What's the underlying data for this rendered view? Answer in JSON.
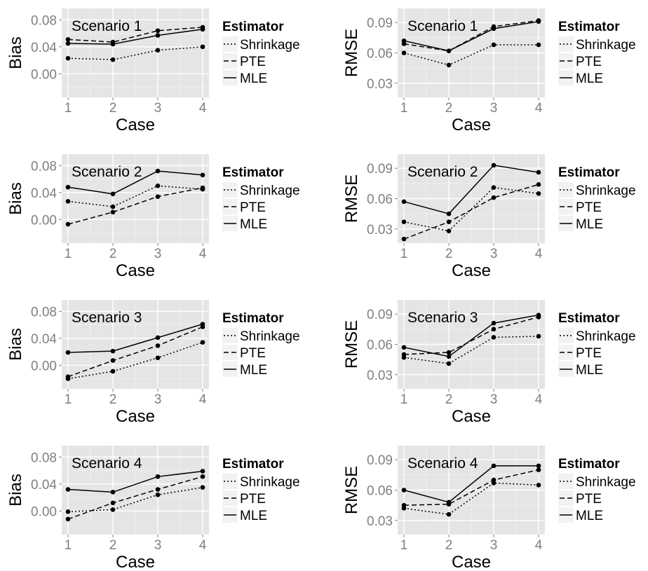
{
  "chart_data": [
    {
      "type": "line",
      "annotation": "Scenario  1",
      "xlabel": "Case",
      "ylabel": "Bias",
      "x": [
        1,
        2,
        3,
        4
      ],
      "yticks": [
        0.0,
        0.04,
        0.08
      ],
      "ytick_labels": [
        "0.00",
        "0.04",
        "0.08"
      ],
      "ylim": [
        -0.035,
        0.097
      ],
      "legend_title": "Estimator",
      "series": [
        {
          "name": "Shrinkage",
          "linestyle": "dotted",
          "values": [
            0.023,
            0.021,
            0.035,
            0.04
          ]
        },
        {
          "name": "PTE",
          "linestyle": "dashed",
          "values": [
            0.051,
            0.047,
            0.064,
            0.069
          ]
        },
        {
          "name": "MLE",
          "linestyle": "solid",
          "values": [
            0.045,
            0.044,
            0.057,
            0.066
          ]
        }
      ]
    },
    {
      "type": "line",
      "annotation": "Scenario  1",
      "xlabel": "Case",
      "ylabel": "RMSE",
      "x": [
        1,
        2,
        3,
        4
      ],
      "yticks": [
        0.03,
        0.06,
        0.09
      ],
      "ytick_labels": [
        "0.03",
        "0.06",
        "0.09"
      ],
      "ylim": [
        0.016,
        0.104
      ],
      "legend_title": "Estimator",
      "series": [
        {
          "name": "Shrinkage",
          "linestyle": "dotted",
          "values": [
            0.06,
            0.048,
            0.068,
            0.068
          ]
        },
        {
          "name": "PTE",
          "linestyle": "dashed",
          "values": [
            0.069,
            0.062,
            0.086,
            0.092
          ]
        },
        {
          "name": "MLE",
          "linestyle": "solid",
          "values": [
            0.072,
            0.062,
            0.084,
            0.091
          ]
        }
      ]
    },
    {
      "type": "line",
      "annotation": "Scenario  2",
      "xlabel": "Case",
      "ylabel": "Bias",
      "x": [
        1,
        2,
        3,
        4
      ],
      "yticks": [
        0.0,
        0.04,
        0.08
      ],
      "ytick_labels": [
        "0.00",
        "0.04",
        "0.08"
      ],
      "ylim": [
        -0.035,
        0.097
      ],
      "legend_title": "Estimator",
      "series": [
        {
          "name": "Shrinkage",
          "linestyle": "dotted",
          "values": [
            0.027,
            0.019,
            0.05,
            0.045
          ]
        },
        {
          "name": "PTE",
          "linestyle": "dashed",
          "values": [
            -0.007,
            0.011,
            0.034,
            0.047
          ]
        },
        {
          "name": "MLE",
          "linestyle": "solid",
          "values": [
            0.048,
            0.038,
            0.072,
            0.066
          ]
        }
      ]
    },
    {
      "type": "line",
      "annotation": "Scenario  2",
      "xlabel": "Case",
      "ylabel": "RMSE",
      "x": [
        1,
        2,
        3,
        4
      ],
      "yticks": [
        0.03,
        0.06,
        0.09
      ],
      "ytick_labels": [
        "0.03",
        "0.06",
        "0.09"
      ],
      "ylim": [
        0.016,
        0.104
      ],
      "legend_title": "Estimator",
      "series": [
        {
          "name": "Shrinkage",
          "linestyle": "dotted",
          "values": [
            0.037,
            0.028,
            0.071,
            0.065
          ]
        },
        {
          "name": "PTE",
          "linestyle": "dashed",
          "values": [
            0.02,
            0.037,
            0.061,
            0.074
          ]
        },
        {
          "name": "MLE",
          "linestyle": "solid",
          "values": [
            0.057,
            0.045,
            0.093,
            0.086
          ]
        }
      ]
    },
    {
      "type": "line",
      "annotation": "Scenario  3",
      "xlabel": "Case",
      "ylabel": "Bias",
      "x": [
        1,
        2,
        3,
        4
      ],
      "yticks": [
        0.0,
        0.04,
        0.08
      ],
      "ytick_labels": [
        "0.00",
        "0.04",
        "0.08"
      ],
      "ylim": [
        -0.035,
        0.097
      ],
      "legend_title": "Estimator",
      "series": [
        {
          "name": "Shrinkage",
          "linestyle": "dotted",
          "values": [
            -0.02,
            -0.009,
            0.011,
            0.034
          ]
        },
        {
          "name": "PTE",
          "linestyle": "dashed",
          "values": [
            -0.017,
            0.007,
            0.029,
            0.057
          ]
        },
        {
          "name": "MLE",
          "linestyle": "solid",
          "values": [
            0.019,
            0.021,
            0.041,
            0.061
          ]
        }
      ]
    },
    {
      "type": "line",
      "annotation": "Scenario  3",
      "xlabel": "Case",
      "ylabel": "RMSE",
      "x": [
        1,
        2,
        3,
        4
      ],
      "yticks": [
        0.03,
        0.06,
        0.09
      ],
      "ytick_labels": [
        "0.03",
        "0.06",
        "0.09"
      ],
      "ylim": [
        0.016,
        0.104
      ],
      "legend_title": "Estimator",
      "series": [
        {
          "name": "Shrinkage",
          "linestyle": "dotted",
          "values": [
            0.047,
            0.041,
            0.067,
            0.068
          ]
        },
        {
          "name": "PTE",
          "linestyle": "dashed",
          "values": [
            0.05,
            0.052,
            0.075,
            0.087
          ]
        },
        {
          "name": "MLE",
          "linestyle": "solid",
          "values": [
            0.057,
            0.048,
            0.081,
            0.089
          ]
        }
      ]
    },
    {
      "type": "line",
      "annotation": "Scenario  4",
      "xlabel": "Case",
      "ylabel": "Bias",
      "x": [
        1,
        2,
        3,
        4
      ],
      "yticks": [
        0.0,
        0.04,
        0.08
      ],
      "ytick_labels": [
        "0.00",
        "0.04",
        "0.08"
      ],
      "ylim": [
        -0.035,
        0.097
      ],
      "legend_title": "Estimator",
      "series": [
        {
          "name": "Shrinkage",
          "linestyle": "dotted",
          "values": [
            -0.001,
            0.002,
            0.024,
            0.035
          ]
        },
        {
          "name": "PTE",
          "linestyle": "dashed",
          "values": [
            -0.012,
            0.012,
            0.032,
            0.051
          ]
        },
        {
          "name": "MLE",
          "linestyle": "solid",
          "values": [
            0.032,
            0.028,
            0.051,
            0.059
          ]
        }
      ]
    },
    {
      "type": "line",
      "annotation": "Scenario  4",
      "xlabel": "Case",
      "ylabel": "RMSE",
      "x": [
        1,
        2,
        3,
        4
      ],
      "yticks": [
        0.03,
        0.06,
        0.09
      ],
      "ytick_labels": [
        "0.03",
        "0.06",
        "0.09"
      ],
      "ylim": [
        0.016,
        0.104
      ],
      "legend_title": "Estimator",
      "series": [
        {
          "name": "Shrinkage",
          "linestyle": "dotted",
          "values": [
            0.042,
            0.036,
            0.067,
            0.065
          ]
        },
        {
          "name": "PTE",
          "linestyle": "dashed",
          "values": [
            0.045,
            0.046,
            0.07,
            0.08
          ]
        },
        {
          "name": "MLE",
          "linestyle": "solid",
          "values": [
            0.06,
            0.048,
            0.084,
            0.084
          ]
        }
      ]
    }
  ]
}
